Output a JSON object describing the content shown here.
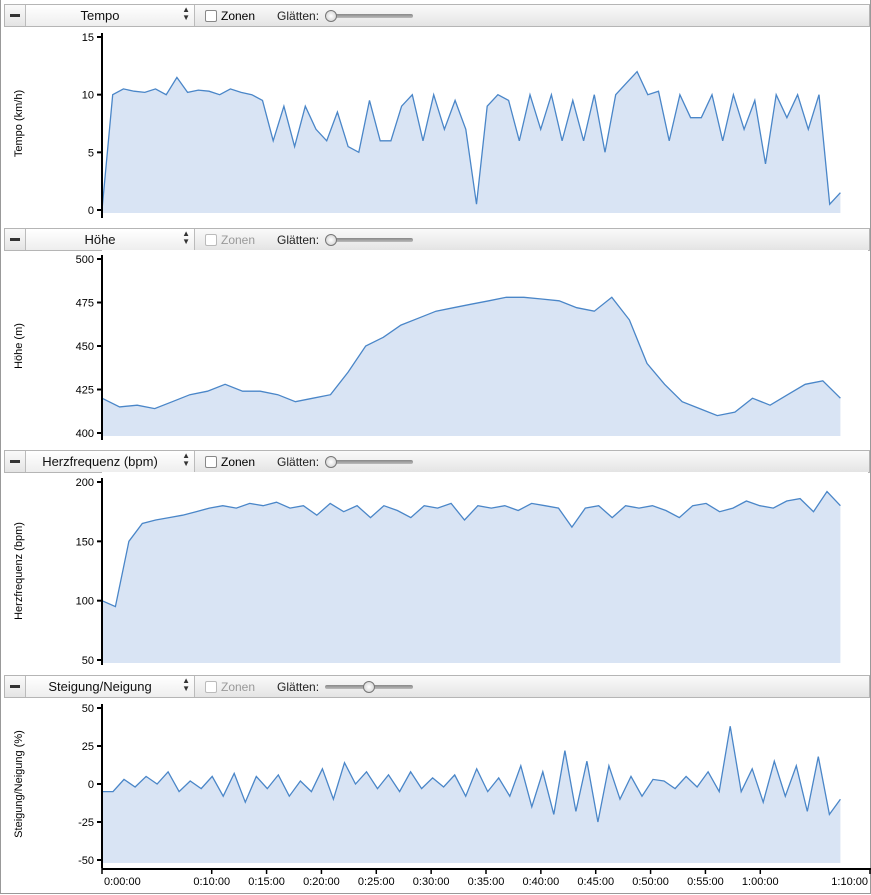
{
  "panels": [
    {
      "metric": "Tempo",
      "zones_label": "Zonen",
      "zones_enabled": true,
      "smooth_label": "Glätten:",
      "smooth_value": 0.0
    },
    {
      "metric": "Höhe",
      "zones_label": "Zonen",
      "zones_enabled": false,
      "smooth_label": "Glätten:",
      "smooth_value": 0.0
    },
    {
      "metric": "Herzfrequenz (bpm)",
      "zones_label": "Zonen",
      "zones_enabled": true,
      "smooth_label": "Glätten:",
      "smooth_value": 0.0
    },
    {
      "metric": "Steigung/Neigung",
      "zones_label": "Zonen",
      "zones_enabled": false,
      "smooth_label": "Glätten:",
      "smooth_value": 0.5
    }
  ],
  "chart_data": [
    {
      "type": "area",
      "ylabel": "Tempo (km/h)",
      "ylim": [
        0,
        15
      ],
      "yticks": [
        "0",
        "5",
        "10",
        "15"
      ],
      "ytick_values": [
        0,
        5,
        10,
        15
      ],
      "x_end_min": 67.3,
      "values": [
        0,
        10,
        10.5,
        10.3,
        10.2,
        10.5,
        10,
        11.5,
        10.2,
        10.4,
        10.3,
        10,
        10.5,
        10.2,
        10,
        9.5,
        6,
        9,
        5.5,
        9,
        7,
        6,
        8.5,
        5.5,
        5,
        9.5,
        6,
        6,
        9,
        10,
        6,
        10,
        7,
        9.5,
        7,
        0.5,
        9,
        10,
        9.5,
        6,
        10,
        7,
        10,
        6,
        9.5,
        6,
        10,
        5,
        10,
        11,
        12,
        10,
        10.3,
        6,
        10,
        8,
        8,
        10,
        6,
        10,
        7,
        9.5,
        4,
        10,
        8,
        10,
        7,
        10,
        0.5,
        1.5
      ]
    },
    {
      "type": "area",
      "ylabel": "Höhe (m)",
      "ylim": [
        400,
        500
      ],
      "yticks": [
        "400",
        "425",
        "450",
        "475",
        "500"
      ],
      "ytick_values": [
        400,
        425,
        450,
        475,
        500
      ],
      "x_end_min": 67.3,
      "values": [
        420,
        415,
        416,
        414,
        418,
        422,
        424,
        428,
        424,
        424,
        422,
        418,
        420,
        422,
        435,
        450,
        455,
        462,
        466,
        470,
        472,
        474,
        476,
        478,
        478,
        477,
        476,
        472,
        470,
        478,
        465,
        440,
        428,
        418,
        414,
        410,
        412,
        420,
        416,
        422,
        428,
        430,
        420
      ]
    },
    {
      "type": "area",
      "ylabel": "Herzfrequenz (bpm)",
      "ylim": [
        50,
        200
      ],
      "yticks": [
        "50",
        "100",
        "150",
        "200"
      ],
      "ytick_values": [
        50,
        100,
        150,
        200
      ],
      "x_end_min": 67.3,
      "values": [
        100,
        95,
        150,
        165,
        168,
        170,
        172,
        175,
        178,
        180,
        178,
        182,
        180,
        183,
        178,
        180,
        172,
        182,
        175,
        180,
        170,
        180,
        176,
        170,
        180,
        178,
        182,
        168,
        180,
        178,
        180,
        176,
        182,
        180,
        178,
        162,
        178,
        180,
        170,
        180,
        178,
        180,
        176,
        170,
        180,
        182,
        175,
        178,
        184,
        180,
        178,
        184,
        186,
        175,
        192,
        180
      ]
    },
    {
      "type": "area",
      "ylabel": "Steigung/Neigung (%)",
      "ylim": [
        -50,
        50
      ],
      "yticks": [
        "-50",
        "-25",
        "0",
        "25",
        "50"
      ],
      "ytick_values": [
        -50,
        -25,
        0,
        25,
        50
      ],
      "x_end_min": 67.3,
      "values": [
        -5,
        -5,
        3,
        -2,
        5,
        0,
        8,
        -5,
        2,
        -3,
        5,
        -8,
        7,
        -12,
        5,
        -3,
        6,
        -8,
        2,
        -5,
        10,
        -10,
        14,
        0,
        8,
        -3,
        6,
        -5,
        8,
        -3,
        4,
        -2,
        6,
        -8,
        10,
        -5,
        4,
        -8,
        12,
        -15,
        8,
        -20,
        22,
        -18,
        15,
        -25,
        12,
        -10,
        5,
        -8,
        3,
        2,
        -3,
        5,
        -2,
        8,
        -5,
        38,
        -5,
        10,
        -12,
        15,
        -8,
        12,
        -18,
        18,
        -20,
        -10
      ]
    }
  ],
  "x_axis": {
    "xlim_min": [
      0,
      70
    ],
    "ticks": [
      "0:00:00",
      "0:10:00",
      "0:15:00",
      "0:20:00",
      "0:25:00",
      "0:30:00",
      "0:35:00",
      "0:40:00",
      "0:45:00",
      "0:50:00",
      "0:55:00",
      "1:00:00",
      "1:10:00"
    ],
    "tick_values": [
      0,
      10,
      15,
      20,
      25,
      30,
      35,
      40,
      45,
      50,
      55,
      60,
      70
    ]
  },
  "colors": {
    "line": "#4a86c8",
    "fill": "#d9e4f4"
  }
}
